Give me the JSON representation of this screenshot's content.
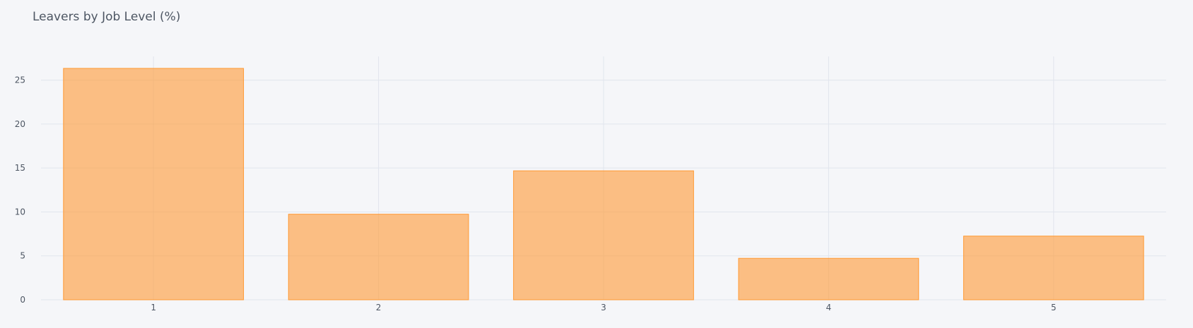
{
  "chart_data": {
    "type": "bar",
    "title": "Leavers by Job Level (%)",
    "xlabel": "",
    "ylabel": "",
    "categories": [
      "1",
      "2",
      "3",
      "4",
      "5"
    ],
    "series": [
      {
        "values": [
          26.34,
          9.74,
          14.68,
          4.72,
          7.25
        ]
      }
    ],
    "ylim": [
      0,
      27.7
    ],
    "yticks": [
      0,
      5,
      10,
      15,
      20,
      25
    ],
    "grid": true,
    "legend": "none",
    "colors": {
      "bar_fill": "#FF9933",
      "background": "#F5F6F9",
      "grid": "#E1E5ED",
      "text": "#4D5663"
    }
  }
}
